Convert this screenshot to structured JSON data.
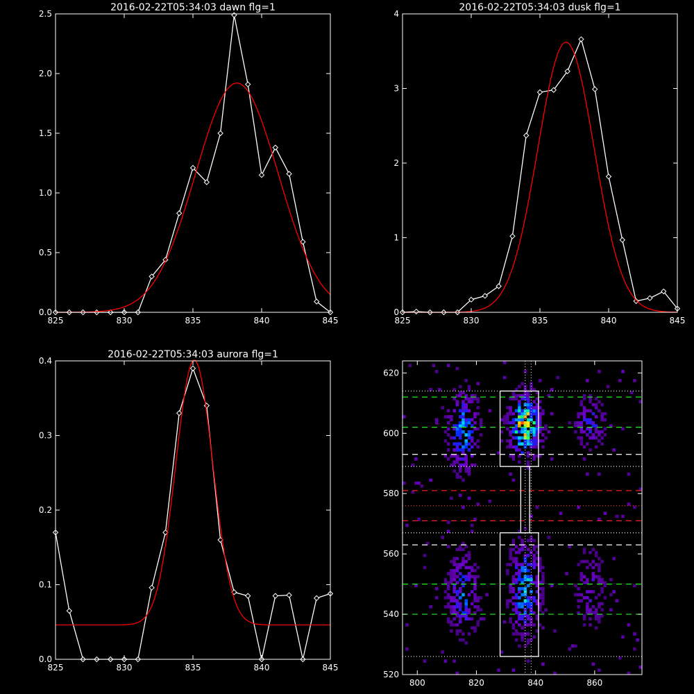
{
  "chart_data": [
    {
      "type": "line",
      "title": "2016-02-22T05:34:03 dawn flg=1",
      "xlim": [
        825,
        845
      ],
      "ylim": [
        0,
        2.5
      ],
      "xticks": [
        825,
        830,
        835,
        840,
        845
      ],
      "yticks": [
        0.0,
        0.5,
        1.0,
        1.5,
        2.0,
        2.5
      ],
      "ytick_labels": [
        "0.0",
        "0.5",
        "1.0",
        "1.5",
        "2.0",
        "2.5"
      ],
      "series": [
        {
          "color": "#ffffff",
          "markers": true,
          "x": [
            825,
            826,
            827,
            828,
            829,
            830,
            831,
            832,
            833,
            834,
            835,
            836,
            837,
            838,
            839,
            840,
            841,
            842,
            843,
            844,
            845
          ],
          "y": [
            0,
            0,
            0,
            0,
            0,
            0,
            0.0,
            0.3,
            0.44,
            0.83,
            1.21,
            1.09,
            1.5,
            2.49,
            1.91,
            1.15,
            1.38,
            1.16,
            0.59,
            0.09,
            0.0
          ]
        },
        {
          "color": "#ff0000",
          "markers": false,
          "gaussian": {
            "amp": 1.92,
            "mu": 838.2,
            "sigma": 3.0,
            "base": 0
          }
        }
      ]
    },
    {
      "type": "line",
      "title": "2016-02-22T05:34:03 dusk flg=1",
      "xlim": [
        825,
        845
      ],
      "ylim": [
        0,
        4
      ],
      "xticks": [
        825,
        830,
        835,
        840,
        845
      ],
      "yticks": [
        0,
        1,
        2,
        3,
        4
      ],
      "ytick_labels": [
        "0",
        "1",
        "2",
        "3",
        "4"
      ],
      "series": [
        {
          "color": "#ffffff",
          "markers": true,
          "x": [
            825,
            826,
            827,
            828,
            829,
            830,
            831,
            832,
            833,
            834,
            835,
            836,
            837,
            838,
            839,
            840,
            841,
            842,
            843,
            844,
            845
          ],
          "y": [
            0,
            0.01,
            0.0,
            0,
            0,
            0.17,
            0.22,
            0.35,
            1.02,
            2.37,
            2.95,
            2.98,
            3.23,
            3.66,
            2.99,
            1.82,
            0.97,
            0.15,
            0.19,
            0.28,
            0.05
          ]
        },
        {
          "color": "#ff0000",
          "markers": false,
          "gaussian": {
            "amp": 3.62,
            "mu": 836.9,
            "sigma": 2.05,
            "base": 0
          }
        }
      ]
    },
    {
      "type": "line",
      "title": "2016-02-22T05:34:03 aurora flg=1",
      "xlim": [
        825,
        845
      ],
      "ylim": [
        0,
        0.4
      ],
      "xticks": [
        825,
        830,
        835,
        840,
        845
      ],
      "yticks": [
        0.0,
        0.1,
        0.2,
        0.3,
        0.4
      ],
      "ytick_labels": [
        "0.0",
        "0.1",
        "0.2",
        "0.3",
        "0.4"
      ],
      "series": [
        {
          "color": "#ffffff",
          "markers": true,
          "x": [
            825,
            826,
            827,
            828,
            829,
            830,
            831,
            832,
            833,
            834,
            835,
            836,
            837,
            838,
            839,
            840,
            841,
            842,
            843,
            844,
            845
          ],
          "y": [
            0.17,
            0.065,
            0.0,
            0,
            0,
            0,
            0.0,
            0.096,
            0.17,
            0.33,
            0.39,
            0.34,
            0.16,
            0.09,
            0.085,
            0.0,
            0.085,
            0.086,
            0.0,
            0.082,
            0.088
          ]
        },
        {
          "color": "#ff0000",
          "markers": false,
          "gaussian": {
            "amp": 0.355,
            "mu": 835.1,
            "sigma": 1.35,
            "base": 0.046
          }
        }
      ]
    },
    {
      "type": "heatmap",
      "title": "",
      "xlim": [
        795,
        876
      ],
      "ylim": [
        520,
        624
      ],
      "xticks": [
        800,
        820,
        840,
        860
      ],
      "yticks": [
        520,
        540,
        560,
        580,
        600,
        620
      ],
      "boxes": [
        {
          "x": [
            828,
            841
          ],
          "y": [
            589,
            614
          ]
        },
        {
          "x": [
            828,
            841
          ],
          "y": [
            526,
            567
          ]
        },
        {
          "x": [
            835,
            838
          ],
          "y": [
            567,
            589
          ]
        }
      ],
      "hlines_white_dotted": [
        614,
        589,
        567,
        526
      ],
      "hlines_white_dashed": [
        593,
        563
      ],
      "hlines_green_dashed": [
        612,
        602,
        550,
        540
      ],
      "hlines_red_dashed": [
        581,
        571
      ],
      "hlines_red_dotted": [
        576
      ],
      "vlines_white_dotted": [
        836.5,
        838.5
      ],
      "clusters": [
        {
          "x": 815,
          "y": 600,
          "sx": 3,
          "sy": 8,
          "intensity": 0.55
        },
        {
          "x": 836,
          "y": 602,
          "sx": 3,
          "sy": 6,
          "intensity": 1.0
        },
        {
          "x": 858,
          "y": 603,
          "sx": 3,
          "sy": 5,
          "intensity": 0.35
        },
        {
          "x": 815,
          "y": 546,
          "sx": 3,
          "sy": 8,
          "intensity": 0.45
        },
        {
          "x": 836,
          "y": 548,
          "sx": 3,
          "sy": 9,
          "intensity": 0.6
        },
        {
          "x": 858,
          "y": 548,
          "sx": 3,
          "sy": 8,
          "intensity": 0.25
        }
      ]
    }
  ]
}
